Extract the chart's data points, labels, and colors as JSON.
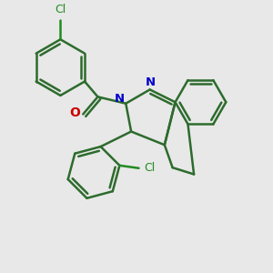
{
  "bg_color": "#e8e8e8",
  "bond_color": "#2d6b2d",
  "N_color": "#0000cc",
  "O_color": "#cc0000",
  "Cl_color": "#228B22",
  "line_width": 1.8,
  "figsize": [
    3.0,
    3.0
  ],
  "dpi": 100,
  "xlim": [
    0,
    10
  ],
  "ylim": [
    0,
    10
  ]
}
